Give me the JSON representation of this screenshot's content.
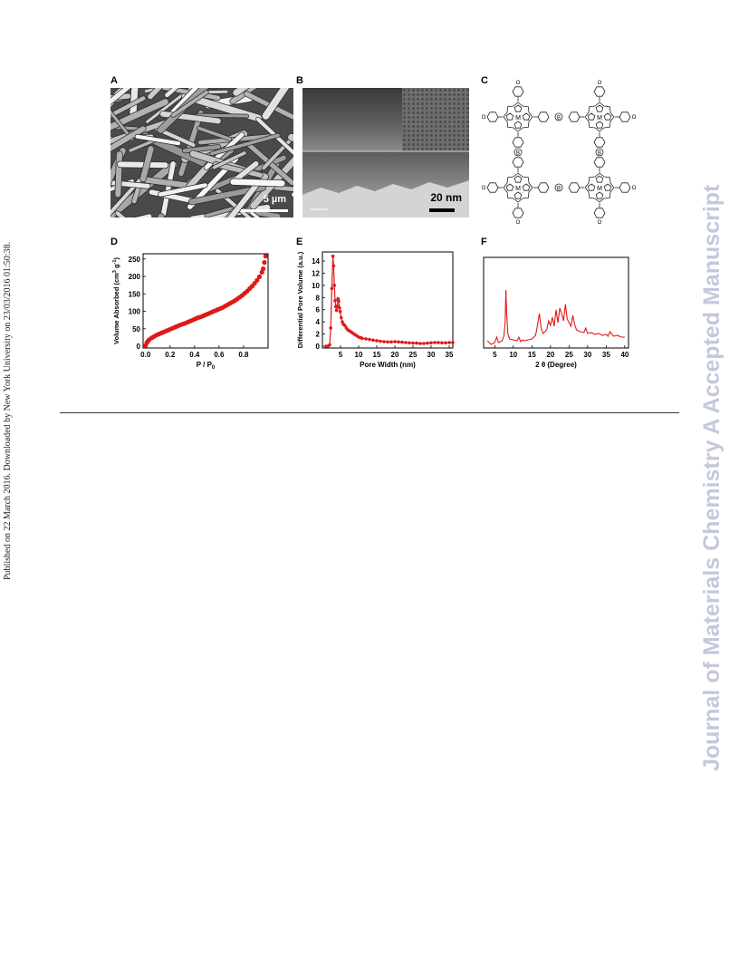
{
  "side_left_text": "Published on 22 March 2016. Downloaded by New York University on 23/03/2016 01:50:38.",
  "side_right_text": "Journal of Materials Chemistry A Accepted Manuscript",
  "panels": {
    "A": {
      "label": "A",
      "scale_bar": "5 µm"
    },
    "B": {
      "label": "B",
      "scale_bar": "20 nm"
    },
    "C": {
      "label": "C",
      "atoms": {
        "metal": "M",
        "carbon_substituent": "C",
        "boron": "B",
        "oxygen": "O"
      }
    },
    "D": {
      "label": "D"
    },
    "E": {
      "label": "E"
    },
    "F": {
      "label": "F"
    }
  },
  "chart_data": [
    {
      "panel": "D",
      "type": "scatter",
      "xlabel": "P / P",
      "xlabel_sub": "0",
      "ylabel": "Volume Absorbed (cm",
      "ylabel_sup": "3",
      "ylabel_end": " g",
      "ylabel_sup2": "-1",
      "ylabel_close": ")",
      "xlim": [
        -0.02,
        1.0
      ],
      "ylim": [
        -5,
        265
      ],
      "xticks": [
        "0.0",
        "0.2",
        "0.4",
        "0.6",
        "0.8"
      ],
      "xtick_values": [
        0.0,
        0.2,
        0.4,
        0.6,
        0.8
      ],
      "yticks": [
        "0",
        "50",
        "100",
        "150",
        "200",
        "250"
      ],
      "ytick_values": [
        0,
        50,
        100,
        150,
        200,
        250
      ],
      "color": "#e01818",
      "x": [
        0.0,
        0.01,
        0.02,
        0.03,
        0.05,
        0.07,
        0.09,
        0.11,
        0.13,
        0.15,
        0.17,
        0.19,
        0.21,
        0.23,
        0.25,
        0.27,
        0.29,
        0.31,
        0.33,
        0.35,
        0.37,
        0.39,
        0.41,
        0.43,
        0.45,
        0.47,
        0.49,
        0.51,
        0.53,
        0.55,
        0.57,
        0.59,
        0.61,
        0.63,
        0.65,
        0.67,
        0.69,
        0.71,
        0.73,
        0.75,
        0.77,
        0.79,
        0.81,
        0.83,
        0.85,
        0.87,
        0.89,
        0.91,
        0.93,
        0.95,
        0.96,
        0.97,
        0.98
      ],
      "y": [
        2,
        10,
        15,
        19,
        24,
        28,
        32,
        35,
        38,
        41,
        44,
        47,
        50,
        53,
        56,
        59,
        62,
        64,
        67,
        70,
        73,
        76,
        79,
        82,
        84,
        87,
        90,
        93,
        96,
        99,
        102,
        105,
        108,
        111,
        115,
        119,
        123,
        127,
        131,
        136,
        141,
        146,
        152,
        158,
        165,
        172,
        180,
        189,
        199,
        212,
        222,
        240,
        258
      ]
    },
    {
      "panel": "E",
      "type": "line",
      "xlabel": "Pore Width (nm)",
      "ylabel": "Differential Pore Volume (a.u.)",
      "xlim": [
        0,
        36
      ],
      "ylim": [
        -0.3,
        15.5
      ],
      "xticks": [
        "5",
        "10",
        "15",
        "20",
        "25",
        "30",
        "35"
      ],
      "xtick_values": [
        5,
        10,
        15,
        20,
        25,
        30,
        35
      ],
      "yticks": [
        "0",
        "2",
        "4",
        "6",
        "8",
        "10",
        "12",
        "14"
      ],
      "ytick_values": [
        0,
        2,
        4,
        6,
        8,
        10,
        12,
        14
      ],
      "color": "#e01818",
      "x": [
        1.0,
        1.5,
        2.0,
        2.3,
        2.6,
        2.9,
        3.1,
        3.3,
        3.5,
        3.7,
        3.9,
        4.1,
        4.3,
        4.5,
        4.7,
        4.9,
        5.2,
        5.5,
        5.8,
        6.2,
        6.6,
        7.0,
        7.5,
        8.0,
        8.5,
        9.0,
        9.5,
        10.0,
        10.5,
        11.0,
        12.0,
        13.0,
        14.0,
        15.0,
        16.0,
        17.0,
        18.0,
        19.0,
        20.0,
        21.0,
        22.0,
        23.0,
        24.0,
        25.0,
        26.0,
        27.0,
        28.0,
        29.0,
        30.0,
        31.0,
        32.0,
        33.0,
        34.0,
        35.0,
        36.0
      ],
      "y": [
        0,
        0,
        0.2,
        3.0,
        9.5,
        14.8,
        13.2,
        10.0,
        7.5,
        6.5,
        5.9,
        6.6,
        7.8,
        7.4,
        6.3,
        5.7,
        4.7,
        4.0,
        3.6,
        3.4,
        3.0,
        2.7,
        2.5,
        2.3,
        2.1,
        1.9,
        1.7,
        1.5,
        1.4,
        1.3,
        1.2,
        1.1,
        1.0,
        0.9,
        0.8,
        0.75,
        0.7,
        0.7,
        0.75,
        0.7,
        0.65,
        0.6,
        0.55,
        0.5,
        0.5,
        0.45,
        0.45,
        0.5,
        0.55,
        0.6,
        0.6,
        0.55,
        0.55,
        0.6,
        0.6
      ]
    },
    {
      "panel": "F",
      "type": "line",
      "xlabel": "2 θ (Degree)",
      "ylabel": "",
      "xlim": [
        2,
        41
      ],
      "ylim": [
        0,
        100
      ],
      "xticks": [
        "5",
        "10",
        "15",
        "20",
        "25",
        "30",
        "35",
        "40"
      ],
      "xtick_values": [
        5,
        10,
        15,
        20,
        25,
        30,
        35,
        40
      ],
      "yticks": [],
      "color": "#e01818",
      "x": [
        3.0,
        4.0,
        5.0,
        5.5,
        6.0,
        6.5,
        7.0,
        7.5,
        7.8,
        8.0,
        8.2,
        8.5,
        9.0,
        10.0,
        11.0,
        11.5,
        12.0,
        12.5,
        13.0,
        14.0,
        15.0,
        16.0,
        16.5,
        17.0,
        17.5,
        18.0,
        19.0,
        19.5,
        20.0,
        20.5,
        21.0,
        21.5,
        22.0,
        22.5,
        23.0,
        23.5,
        24.0,
        24.5,
        25.0,
        25.5,
        26.0,
        26.5,
        27.0,
        28.0,
        29.0,
        29.5,
        30.0,
        31.0,
        32.0,
        33.0,
        34.0,
        35.0,
        35.5,
        36.0,
        37.0,
        38.0,
        39.0,
        40.0
      ],
      "y": [
        8,
        4,
        6,
        12,
        6,
        7,
        8,
        14,
        30,
        64,
        40,
        16,
        10,
        9,
        8,
        12,
        7,
        9,
        8,
        9,
        10,
        14,
        25,
        38,
        22,
        16,
        20,
        30,
        25,
        34,
        24,
        42,
        28,
        44,
        38,
        30,
        48,
        32,
        28,
        24,
        36,
        26,
        20,
        18,
        17,
        22,
        16,
        17,
        15,
        16,
        14,
        15,
        13,
        18,
        13,
        14,
        12,
        12
      ]
    }
  ]
}
